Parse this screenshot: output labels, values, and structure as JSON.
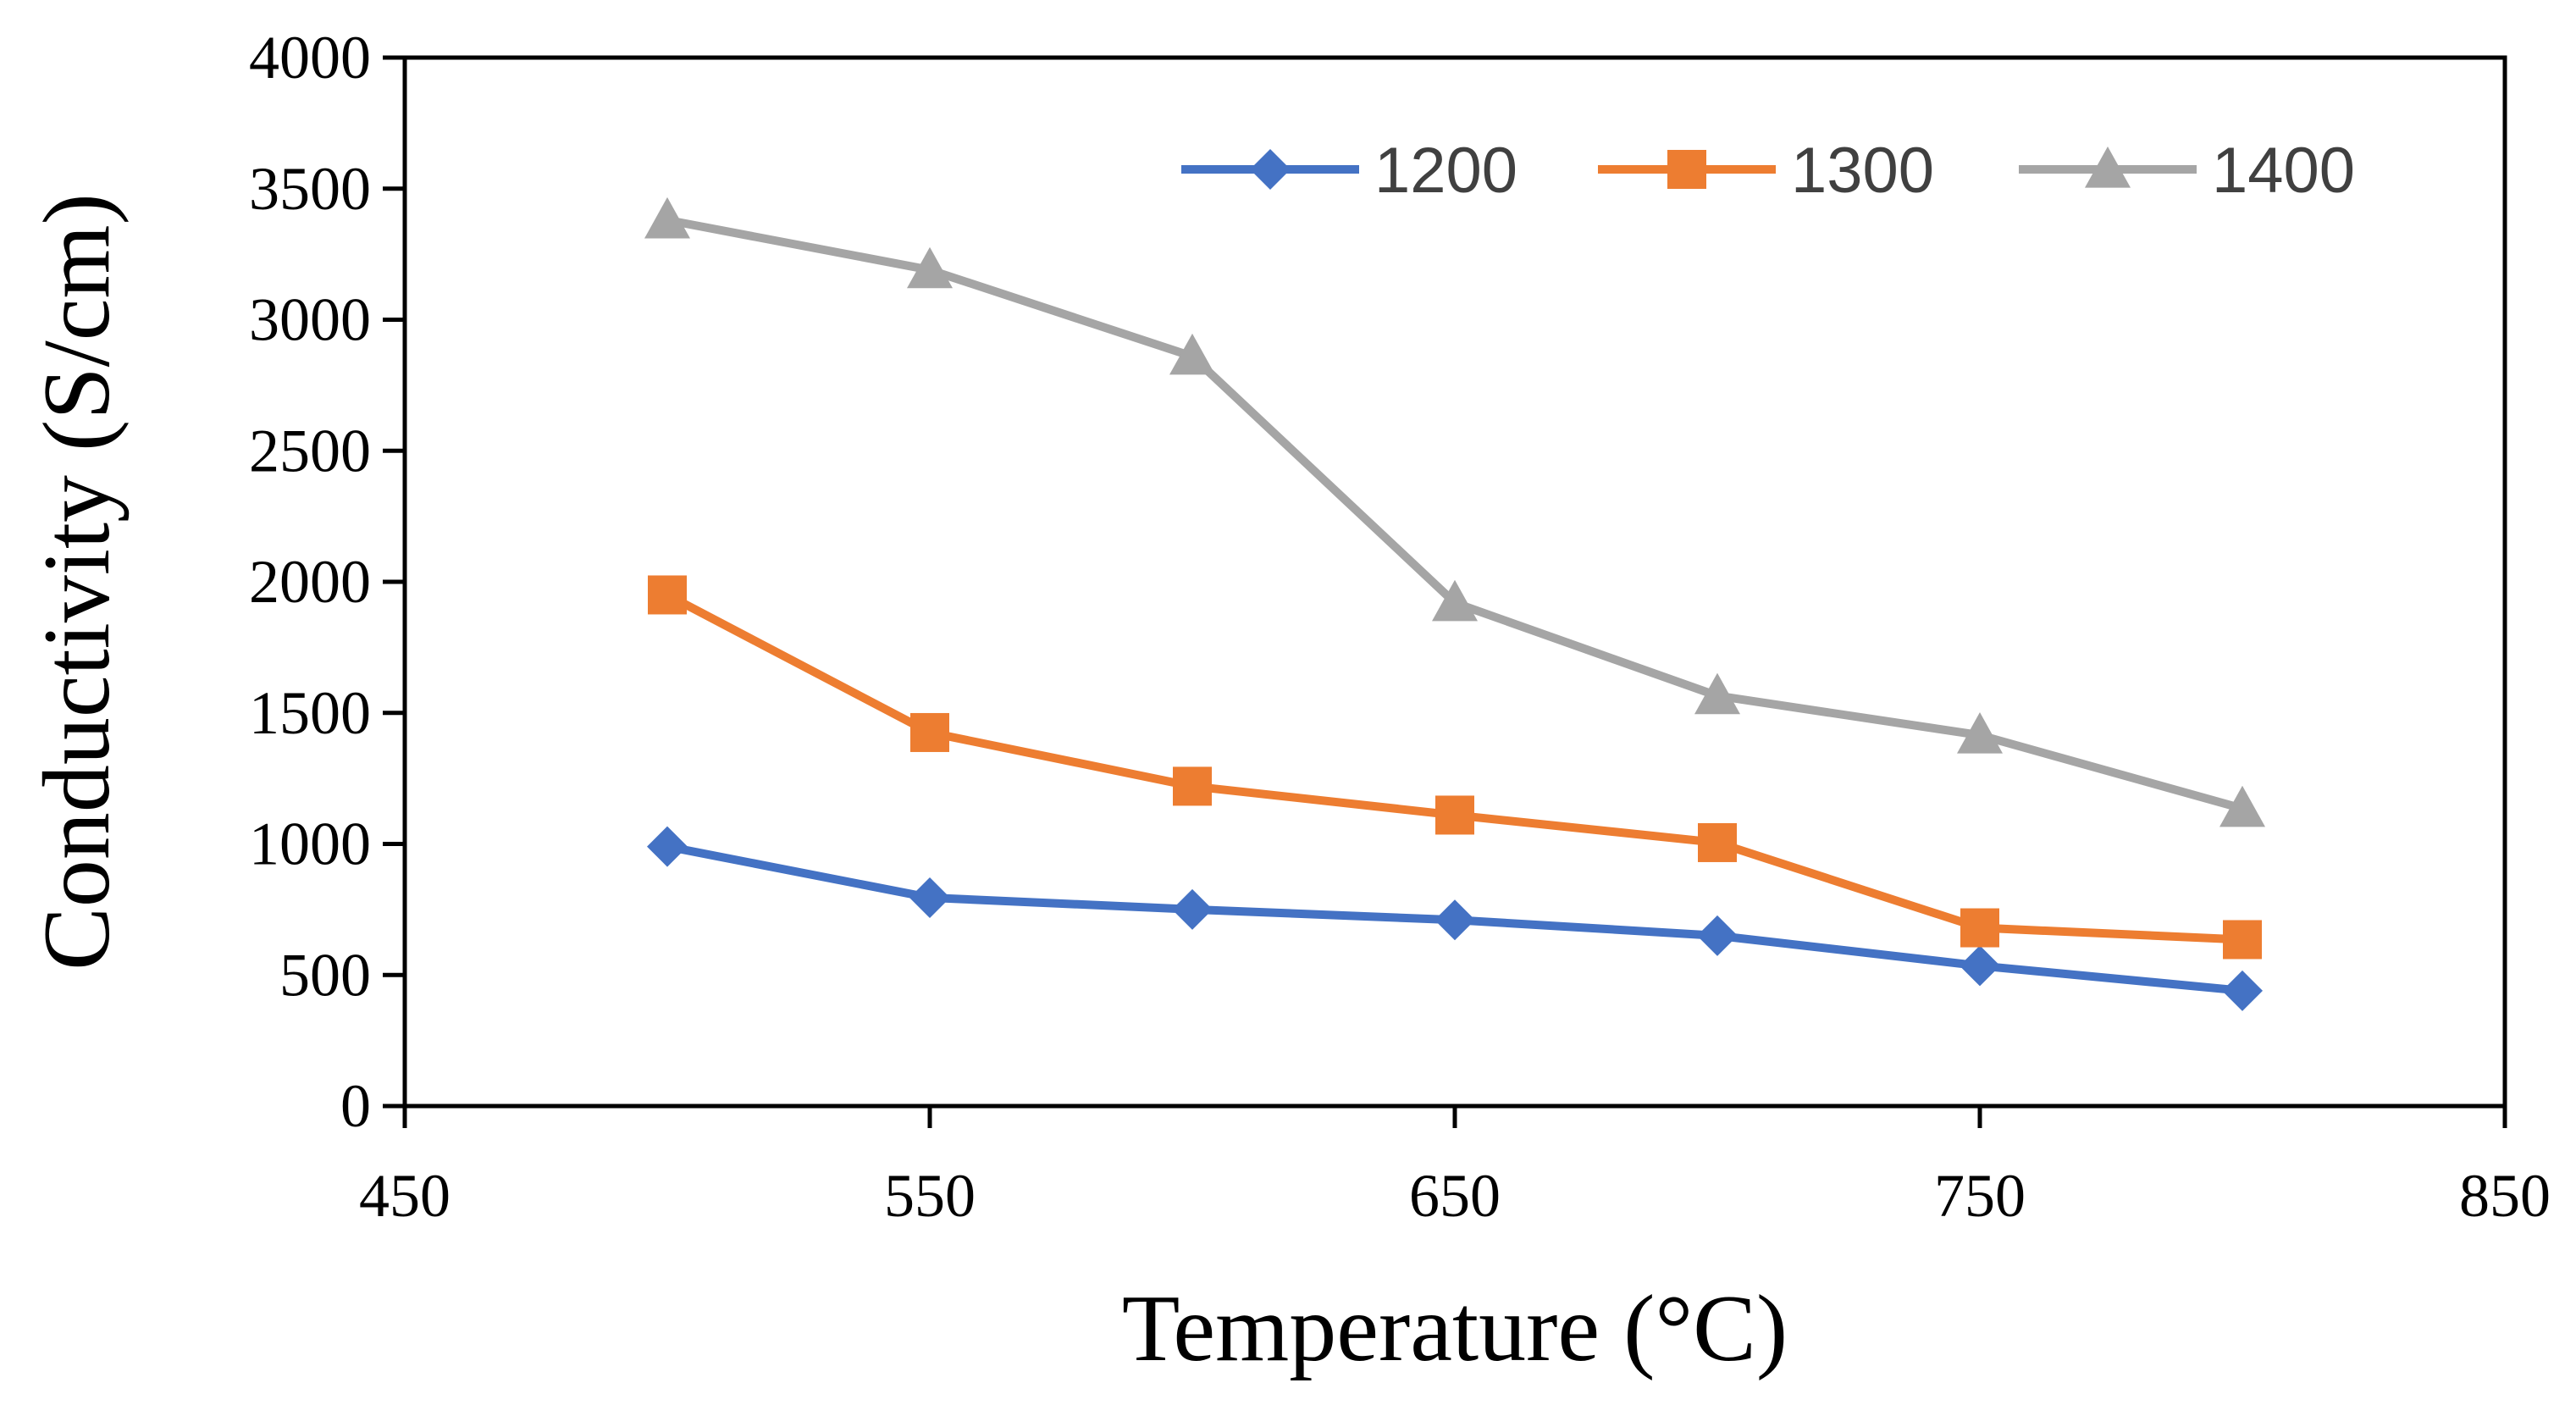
{
  "chart_data": {
    "type": "line",
    "title": "",
    "xlabel": "Temperature (°C)",
    "ylabel": "Conductivity (S/cm)",
    "xlim": [
      450,
      850
    ],
    "ylim": [
      0,
      4000
    ],
    "xticks": [
      450,
      550,
      650,
      750,
      850
    ],
    "yticks": [
      0,
      500,
      1000,
      1500,
      2000,
      2500,
      3000,
      3500,
      4000
    ],
    "grid": false,
    "legend_position": "top-right",
    "x": [
      500,
      550,
      600,
      650,
      700,
      750,
      800
    ],
    "series": [
      {
        "name": "1200",
        "color": "#4472c4",
        "marker": "diamond",
        "values": [
          990,
          795,
          750,
          710,
          650,
          535,
          440
        ]
      },
      {
        "name": "1300",
        "color": "#ed7d31",
        "marker": "square",
        "values": [
          1950,
          1425,
          1220,
          1110,
          1005,
          680,
          635
        ]
      },
      {
        "name": "1400",
        "color": "#a5a5a5",
        "marker": "triangle",
        "values": [
          3380,
          3190,
          2860,
          1920,
          1565,
          1415,
          1135
        ]
      }
    ]
  }
}
